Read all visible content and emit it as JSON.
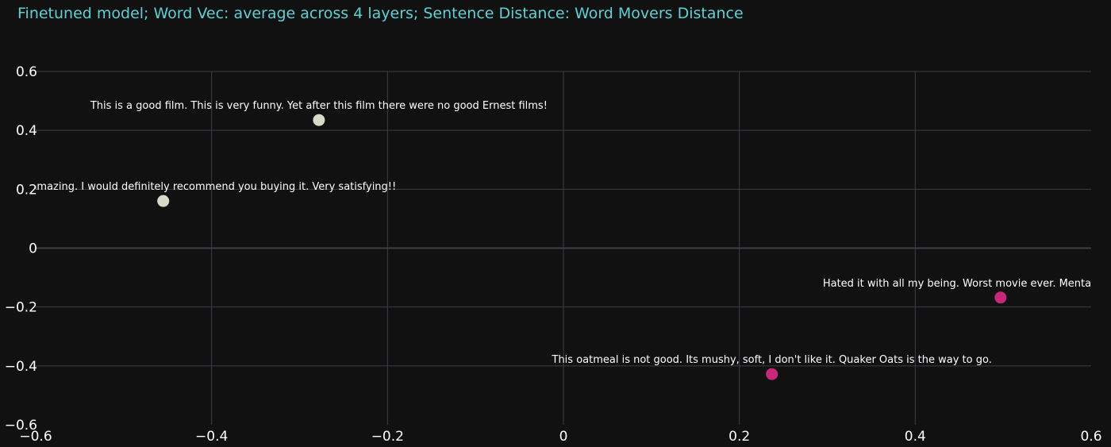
{
  "chart_data": {
    "type": "scatter",
    "title": "Finetuned model; Word Vec: average across 4 layers; Sentence Distance: Word Movers Distance",
    "xlabel": "",
    "ylabel": "",
    "xlim": [
      -0.6,
      0.6
    ],
    "ylim": [
      -0.6,
      0.6
    ],
    "grid": true,
    "x_ticks": [
      -0.6,
      -0.4,
      -0.2,
      0,
      0.2,
      0.4,
      0.6
    ],
    "y_ticks": [
      -0.6,
      -0.4,
      -0.2,
      0,
      0.2,
      0.4,
      0.6
    ],
    "x_tick_labels": [
      "−0.6",
      "−0.4",
      "−0.2",
      "0",
      "0.2",
      "0.4",
      "0.6"
    ],
    "y_tick_labels": [
      "−0.6",
      "−0.4",
      "−0.2",
      "0",
      "0.2",
      "0.4",
      "0.6"
    ],
    "points": [
      {
        "x": -0.278,
        "y": 0.435,
        "color": "#d9d9c8",
        "label": "This is a good film. This is very funny. Yet after this film there were no good Ernest films!"
      },
      {
        "x": -0.455,
        "y": 0.16,
        "color": "#d9d9c8",
        "label": "wy.  The flavors are amazing.  I would definitely recommend you buying it.  Very satisfying!!"
      },
      {
        "x": 0.497,
        "y": -0.168,
        "color": "#c8287a",
        "label": "Hated it with all my being. Worst movie ever. Mentally- scarred. Help"
      },
      {
        "x": 0.237,
        "y": -0.428,
        "color": "#c8287a",
        "label": "This oatmeal is not good. Its mushy, soft, I don't like it. Quaker Oats is the way to go."
      }
    ],
    "colors": {
      "background": "#111111",
      "grid": "#3b4048",
      "title": "#5fd0d4",
      "text": "#ffffff"
    }
  }
}
